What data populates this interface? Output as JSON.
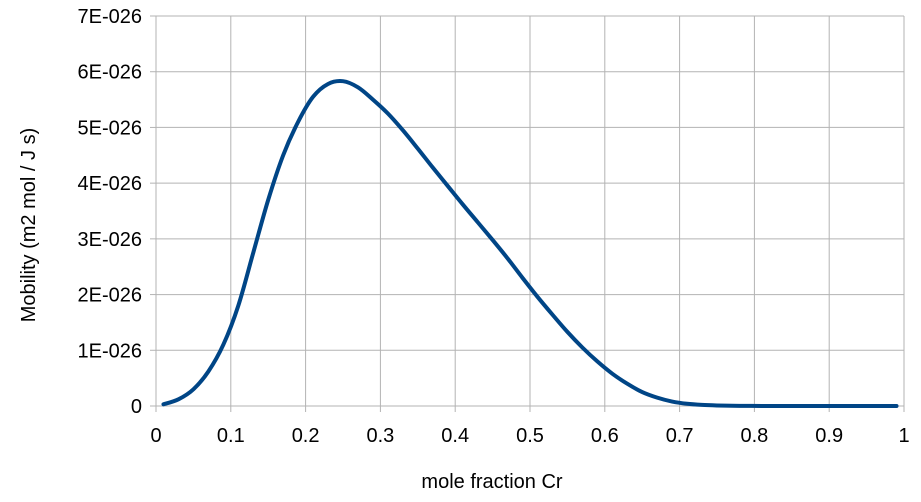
{
  "chart_data": {
    "type": "line",
    "title": "",
    "xlabel": "mole fraction Cr",
    "ylabel": "Mobility (m2 mol / J s)",
    "xlim": [
      0,
      1
    ],
    "ylim": [
      0,
      7e-26
    ],
    "grid": true,
    "x_ticks": [
      {
        "value": 0,
        "label": "0"
      },
      {
        "value": 0.1,
        "label": "0.1"
      },
      {
        "value": 0.2,
        "label": "0.2"
      },
      {
        "value": 0.3,
        "label": "0.3"
      },
      {
        "value": 0.4,
        "label": "0.4"
      },
      {
        "value": 0.5,
        "label": "0.5"
      },
      {
        "value": 0.6,
        "label": "0.6"
      },
      {
        "value": 0.7,
        "label": "0.7"
      },
      {
        "value": 0.8,
        "label": "0.8"
      },
      {
        "value": 0.9,
        "label": "0.9"
      },
      {
        "value": 1,
        "label": "1"
      }
    ],
    "y_ticks": [
      {
        "value": 0,
        "label": "0"
      },
      {
        "value": 1e-26,
        "label": "1E-026"
      },
      {
        "value": 2e-26,
        "label": "2E-026"
      },
      {
        "value": 3e-26,
        "label": "3E-026"
      },
      {
        "value": 4e-26,
        "label": "4E-026"
      },
      {
        "value": 5e-26,
        "label": "5E-026"
      },
      {
        "value": 6e-26,
        "label": "6E-026"
      },
      {
        "value": 7e-26,
        "label": "7E-026"
      }
    ],
    "colors": {
      "line": "#004586",
      "grid": "#b3b3b3",
      "axis": "#b3b3b3"
    },
    "series": [
      {
        "x": [
          0.01,
          0.03,
          0.05,
          0.07,
          0.09,
          0.11,
          0.13,
          0.15,
          0.17,
          0.19,
          0.21,
          0.23,
          0.25,
          0.27,
          0.29,
          0.31,
          0.33,
          0.35,
          0.37,
          0.39,
          0.41,
          0.43,
          0.45,
          0.47,
          0.49,
          0.51,
          0.53,
          0.55,
          0.57,
          0.59,
          0.61,
          0.63,
          0.65,
          0.67,
          0.69,
          0.71,
          0.73,
          0.75,
          0.77,
          0.79,
          0.81,
          0.85,
          0.9,
          0.95,
          0.99
        ],
        "y": [
          3e-28,
          1.2e-27,
          3e-27,
          6.2e-27,
          1.1e-26,
          1.8e-26,
          2.75e-26,
          3.7e-26,
          4.5e-26,
          5.1e-26,
          5.55e-26,
          5.78e-26,
          5.83e-26,
          5.72e-26,
          5.5e-26,
          5.25e-26,
          4.95e-26,
          4.62e-26,
          4.28e-26,
          3.95e-26,
          3.62e-26,
          3.3e-26,
          2.98e-26,
          2.65e-26,
          2.3e-26,
          1.96e-26,
          1.64e-26,
          1.33e-26,
          1.05e-26,
          8e-27,
          5.8e-27,
          4e-27,
          2.5e-27,
          1.5e-27,
          8e-28,
          4e-28,
          2e-28,
          1e-28,
          5e-29,
          2e-29,
          1e-29,
          0,
          0,
          0,
          0
        ]
      }
    ]
  }
}
